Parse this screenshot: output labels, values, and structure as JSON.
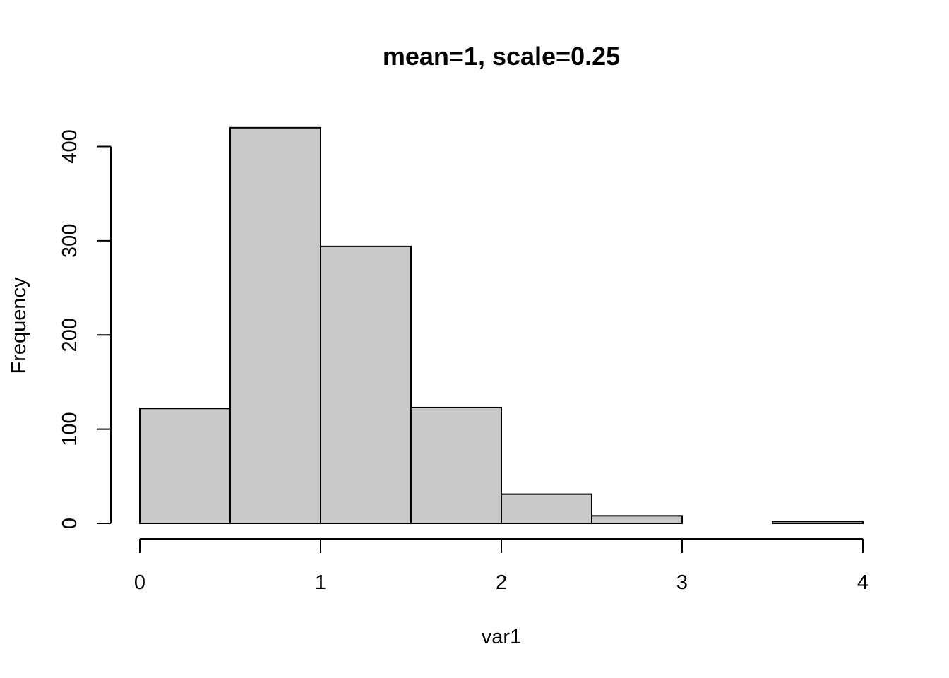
{
  "chart_data": {
    "type": "bar",
    "title": "mean=1, scale=0.25",
    "xlabel": "var1",
    "ylabel": "Frequency",
    "bins": [
      {
        "x0": 0.0,
        "x1": 0.5,
        "count": 122
      },
      {
        "x0": 0.5,
        "x1": 1.0,
        "count": 420
      },
      {
        "x0": 1.0,
        "x1": 1.5,
        "count": 294
      },
      {
        "x0": 1.5,
        "x1": 2.0,
        "count": 123
      },
      {
        "x0": 2.0,
        "x1": 2.5,
        "count": 31
      },
      {
        "x0": 2.5,
        "x1": 3.0,
        "count": 8
      },
      {
        "x0": 3.0,
        "x1": 3.5,
        "count": 0
      },
      {
        "x0": 3.5,
        "x1": 4.0,
        "count": 2
      }
    ],
    "x_ticks": [
      0,
      1,
      2,
      3,
      4
    ],
    "y_ticks": [
      0,
      100,
      200,
      300,
      400
    ],
    "xlim": [
      0,
      4
    ],
    "ylim": [
      0,
      420
    ],
    "grid": false,
    "colors": {
      "bar_fill": "#c9c9c9",
      "bar_stroke": "#000000"
    }
  }
}
